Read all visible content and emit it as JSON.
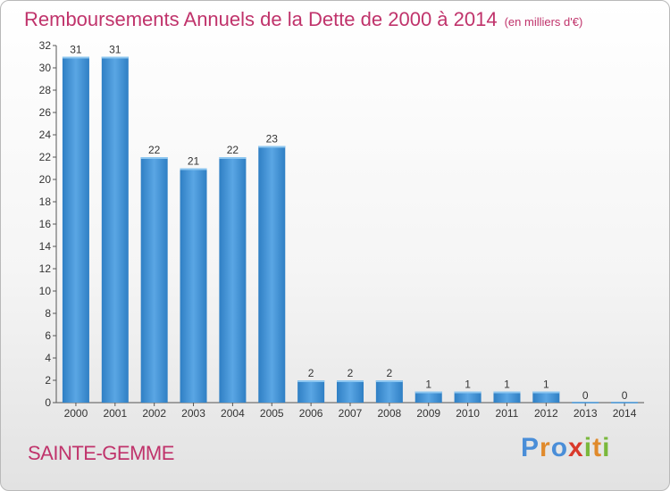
{
  "title": "Remboursements Annuels de la Dette de 2000 à 2014",
  "subtitle": "(en milliers d'€)",
  "commune": "SAINTE-GEMME",
  "brand": {
    "text": "Proxiti",
    "letters": [
      "P",
      "r",
      "o",
      "x",
      "i",
      "t",
      "i"
    ],
    "colors": [
      "#4a8ed8",
      "#e08a2c",
      "#4a8ed8",
      "#d9392b",
      "#7ab83c",
      "#e08a2c",
      "#7ab83c"
    ]
  },
  "colors": {
    "bar": "#3d8fd4",
    "bar_light": "#62ace6",
    "accent": "#c0336b"
  },
  "chart_data": {
    "type": "bar",
    "categories": [
      "2000",
      "2001",
      "2002",
      "2003",
      "2004",
      "2005",
      "2006",
      "2007",
      "2008",
      "2009",
      "2010",
      "2011",
      "2012",
      "2013",
      "2014"
    ],
    "values": [
      31,
      31,
      22,
      21,
      22,
      23,
      2,
      2,
      2,
      1,
      1,
      1,
      1,
      0,
      0
    ],
    "title": "Remboursements Annuels de la Dette de 2000 à 2014",
    "xlabel": "",
    "ylabel": "",
    "ylim": [
      0,
      32
    ],
    "yticks": [
      0,
      2,
      4,
      6,
      8,
      10,
      12,
      14,
      16,
      18,
      20,
      22,
      24,
      26,
      28,
      30,
      32
    ],
    "grid": false,
    "data_labels": true
  }
}
